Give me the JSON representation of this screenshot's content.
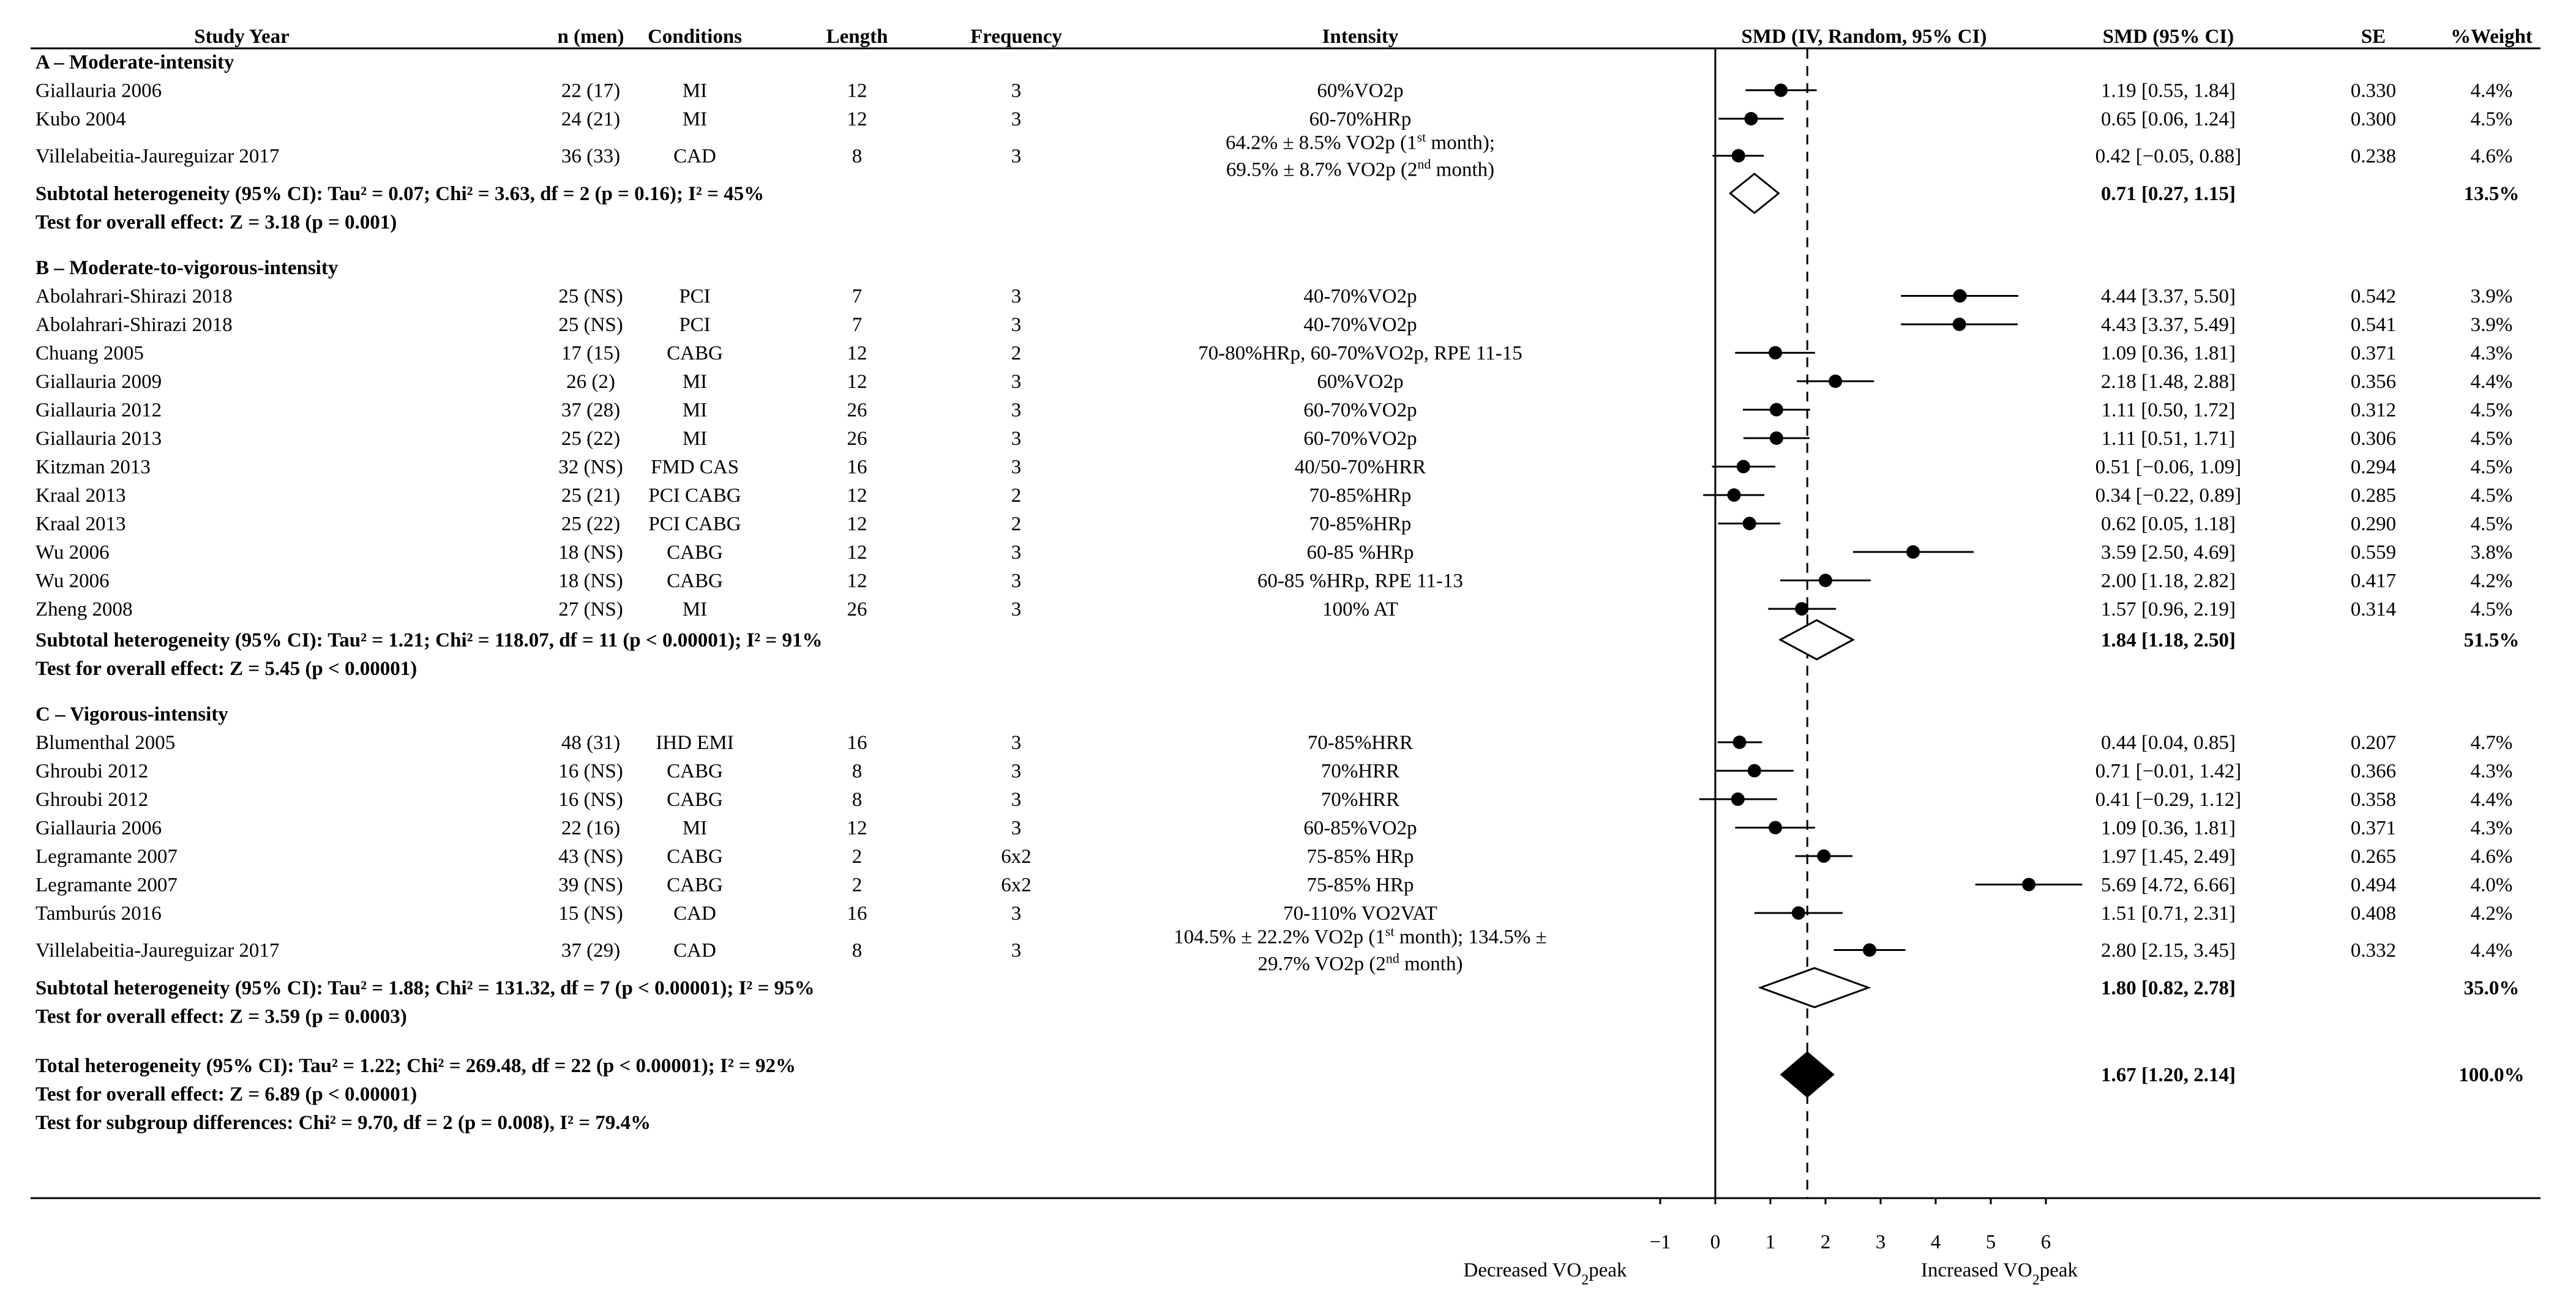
{
  "chart_data": {
    "type": "forest",
    "title": "",
    "columns": {
      "study": "Study Year",
      "n": "n (men)",
      "conditions": "Conditions",
      "length": "Length",
      "frequency": "Frequency",
      "intensity": "Intensity",
      "plot": "SMD (IV, Random, 95% CI)",
      "smd": "SMD (95% CI)",
      "se": "SE",
      "weight": "%Weight"
    },
    "xaxis": {
      "min": -1,
      "max": 6,
      "ticks": [
        -1,
        0,
        1,
        2,
        3,
        4,
        5,
        6
      ],
      "tick_labels": [
        "−1",
        "0",
        "1",
        "2",
        "3",
        "4",
        "5",
        "6"
      ],
      "dashed_line_at": 1.67,
      "left_label": "Decreased VO₂peak",
      "right_label": "Increased VO₂peak"
    },
    "groups": [
      {
        "heading": "A – Moderate-intensity",
        "studies": [
          {
            "name": "Giallauria 2006",
            "n": "22 (17)",
            "cond": "MI",
            "length": "12",
            "freq": "3",
            "intensity": [
              "60%VO2p"
            ],
            "smd": 1.19,
            "lo": 0.55,
            "hi": 1.84,
            "ci_text": "1.19 [0.55, 1.84]",
            "se": "0.330",
            "weight": "4.4%"
          },
          {
            "name": "Kubo 2004",
            "n": "24 (21)",
            "cond": "MI",
            "length": "12",
            "freq": "3",
            "intensity": [
              "60-70%HRp"
            ],
            "smd": 0.65,
            "lo": 0.06,
            "hi": 1.24,
            "ci_text": "0.65 [0.06, 1.24]",
            "se": "0.300",
            "weight": "4.5%"
          },
          {
            "name": "Villelabeitia-Jaureguizar 2017",
            "n": "36 (33)",
            "cond": "CAD",
            "length": "8",
            "freq": "3",
            "intensity": [
              "64.2% ± 8.5% VO2p (1st month);",
              "69.5% ± 8.7% VO2p (2nd month)"
            ],
            "smd": 0.42,
            "lo": -0.05,
            "hi": 0.88,
            "ci_text": "0.42 [−0.05, 0.88]",
            "se": "0.238",
            "weight": "4.6%"
          }
        ],
        "subtotal": {
          "label": "Subtotal heterogeneity (95% CI): Tau² = 0.07; Chi² = 3.63, df = 2 (p = 0.16); I² = 45%",
          "smd": 0.71,
          "lo": 0.27,
          "hi": 1.15,
          "ci_text": "0.71 [0.27, 1.15]",
          "weight": "13.5%"
        },
        "overall": "Test for overall effect: Z = 3.18 (p = 0.001)"
      },
      {
        "heading": "B – Moderate-to-vigorous-intensity",
        "studies": [
          {
            "name": "Abolahrari-Shirazi 2018",
            "n": "25 (NS)",
            "cond": "PCI",
            "length": "7",
            "freq": "3",
            "intensity": [
              "40-70%VO2p"
            ],
            "smd": 4.44,
            "lo": 3.37,
            "hi": 5.5,
            "ci_text": "4.44 [3.37, 5.50]",
            "se": "0.542",
            "weight": "3.9%"
          },
          {
            "name": "Abolahrari-Shirazi 2018",
            "n": "25 (NS)",
            "cond": "PCI",
            "length": "7",
            "freq": "3",
            "intensity": [
              "40-70%VO2p"
            ],
            "smd": 4.43,
            "lo": 3.37,
            "hi": 5.49,
            "ci_text": "4.43 [3.37, 5.49]",
            "se": "0.541",
            "weight": "3.9%"
          },
          {
            "name": "Chuang 2005",
            "n": "17 (15)",
            "cond": "CABG",
            "length": "12",
            "freq": "2",
            "intensity": [
              "70-80%HRp, 60-70%VO2p, RPE 11-15"
            ],
            "smd": 1.09,
            "lo": 0.36,
            "hi": 1.81,
            "ci_text": "1.09 [0.36, 1.81]",
            "se": "0.371",
            "weight": "4.3%"
          },
          {
            "name": "Giallauria 2009",
            "n": "26 (2)",
            "cond": "MI",
            "length": "12",
            "freq": "3",
            "intensity": [
              "60%VO2p"
            ],
            "smd": 2.18,
            "lo": 1.48,
            "hi": 2.88,
            "ci_text": "2.18 [1.48, 2.88]",
            "se": "0.356",
            "weight": "4.4%"
          },
          {
            "name": "Giallauria 2012",
            "n": "37 (28)",
            "cond": "MI",
            "length": "26",
            "freq": "3",
            "intensity": [
              "60-70%VO2p"
            ],
            "smd": 1.11,
            "lo": 0.5,
            "hi": 1.72,
            "ci_text": "1.11 [0.50, 1.72]",
            "se": "0.312",
            "weight": "4.5%"
          },
          {
            "name": "Giallauria 2013",
            "n": "25 (22)",
            "cond": "MI",
            "length": "26",
            "freq": "3",
            "intensity": [
              "60-70%VO2p"
            ],
            "smd": 1.11,
            "lo": 0.51,
            "hi": 1.71,
            "ci_text": "1.11 [0.51, 1.71]",
            "se": "0.306",
            "weight": "4.5%"
          },
          {
            "name": "Kitzman 2013",
            "n": "32 (NS)",
            "cond": "FMD CAS",
            "length": "16",
            "freq": "3",
            "intensity": [
              "40/50-70%HRR"
            ],
            "smd": 0.51,
            "lo": -0.06,
            "hi": 1.09,
            "ci_text": "0.51 [−0.06, 1.09]",
            "se": "0.294",
            "weight": "4.5%"
          },
          {
            "name": "Kraal 2013",
            "n": "25 (21)",
            "cond": "PCI CABG",
            "length": "12",
            "freq": "2",
            "intensity": [
              "70-85%HRp"
            ],
            "smd": 0.34,
            "lo": -0.22,
            "hi": 0.89,
            "ci_text": "0.34 [−0.22, 0.89]",
            "se": "0.285",
            "weight": "4.5%"
          },
          {
            "name": "Kraal 2013",
            "n": "25 (22)",
            "cond": "PCI CABG",
            "length": "12",
            "freq": "2",
            "intensity": [
              "70-85%HRp"
            ],
            "smd": 0.62,
            "lo": 0.05,
            "hi": 1.18,
            "ci_text": "0.62 [0.05, 1.18]",
            "se": "0.290",
            "weight": "4.5%"
          },
          {
            "name": "Wu 2006",
            "n": "18 (NS)",
            "cond": "CABG",
            "length": "12",
            "freq": "3",
            "intensity": [
              "60-85 %HRp"
            ],
            "smd": 3.59,
            "lo": 2.5,
            "hi": 4.69,
            "ci_text": "3.59 [2.50, 4.69]",
            "se": "0.559",
            "weight": "3.8%"
          },
          {
            "name": "Wu 2006",
            "n": "18 (NS)",
            "cond": "CABG",
            "length": "12",
            "freq": "3",
            "intensity": [
              "60-85 %HRp, RPE 11-13"
            ],
            "smd": 2.0,
            "lo": 1.18,
            "hi": 2.82,
            "ci_text": "2.00 [1.18, 2.82]",
            "se": "0.417",
            "weight": "4.2%"
          },
          {
            "name": "Zheng 2008",
            "n": "27 (NS)",
            "cond": "MI",
            "length": "26",
            "freq": "3",
            "intensity": [
              "100% AT"
            ],
            "smd": 1.57,
            "lo": 0.96,
            "hi": 2.19,
            "ci_text": "1.57 [0.96, 2.19]",
            "se": "0.314",
            "weight": "4.5%"
          }
        ],
        "subtotal": {
          "label": "Subtotal heterogeneity (95% CI): Tau² = 1.21; Chi² = 118.07, df = 11 (p < 0.00001); I² = 91%",
          "smd": 1.84,
          "lo": 1.18,
          "hi": 2.5,
          "ci_text": "1.84 [1.18, 2.50]",
          "weight": "51.5%"
        },
        "overall": "Test for overall effect: Z = 5.45 (p < 0.00001)"
      },
      {
        "heading": "C – Vigorous-intensity",
        "studies": [
          {
            "name": "Blumenthal 2005",
            "n": "48 (31)",
            "cond": "IHD EMI",
            "length": "16",
            "freq": "3",
            "intensity": [
              "70-85%HRR"
            ],
            "smd": 0.44,
            "lo": 0.04,
            "hi": 0.85,
            "ci_text": "0.44 [0.04, 0.85]",
            "se": "0.207",
            "weight": "4.7%"
          },
          {
            "name": "Ghroubi 2012",
            "n": "16 (NS)",
            "cond": "CABG",
            "length": "8",
            "freq": "3",
            "intensity": [
              "70%HRR"
            ],
            "smd": 0.71,
            "lo": -0.01,
            "hi": 1.42,
            "ci_text": "0.71 [−0.01, 1.42]",
            "se": "0.366",
            "weight": "4.3%"
          },
          {
            "name": "Ghroubi 2012",
            "n": "16 (NS)",
            "cond": "CABG",
            "length": "8",
            "freq": "3",
            "intensity": [
              "70%HRR"
            ],
            "smd": 0.41,
            "lo": -0.29,
            "hi": 1.12,
            "ci_text": "0.41 [−0.29, 1.12]",
            "se": "0.358",
            "weight": "4.4%"
          },
          {
            "name": "Giallauria 2006",
            "n": "22 (16)",
            "cond": "MI",
            "length": "12",
            "freq": "3",
            "intensity": [
              "60-85%VO2p"
            ],
            "smd": 1.09,
            "lo": 0.36,
            "hi": 1.81,
            "ci_text": "1.09 [0.36, 1.81]",
            "se": "0.371",
            "weight": "4.3%"
          },
          {
            "name": "Legramante 2007",
            "n": "43 (NS)",
            "cond": "CABG",
            "length": "2",
            "freq": "6x2",
            "intensity": [
              "75-85% HRp"
            ],
            "smd": 1.97,
            "lo": 1.45,
            "hi": 2.49,
            "ci_text": "1.97 [1.45, 2.49]",
            "se": "0.265",
            "weight": "4.6%"
          },
          {
            "name": "Legramante 2007",
            "n": "39 (NS)",
            "cond": "CABG",
            "length": "2",
            "freq": "6x2",
            "intensity": [
              "75-85% HRp"
            ],
            "smd": 5.69,
            "lo": 4.72,
            "hi": 6.66,
            "ci_text": "5.69 [4.72, 6.66]",
            "se": "0.494",
            "weight": "4.0%"
          },
          {
            "name": "Tamburús 2016",
            "n": "15 (NS)",
            "cond": "CAD",
            "length": "16",
            "freq": "3",
            "intensity": [
              "70-110% VO2VAT"
            ],
            "smd": 1.51,
            "lo": 0.71,
            "hi": 2.31,
            "ci_text": "1.51 [0.71, 2.31]",
            "se": "0.408",
            "weight": "4.2%"
          },
          {
            "name": "Villelabeitia-Jaureguizar 2017",
            "n": "37 (29)",
            "cond": "CAD",
            "length": "8",
            "freq": "3",
            "intensity": [
              "104.5% ± 22.2% VO2p (1st month); 134.5% ±",
              "29.7% VO2p (2nd month)"
            ],
            "smd": 2.8,
            "lo": 2.15,
            "hi": 3.45,
            "ci_text": "2.80 [2.15, 3.45]",
            "se": "0.332",
            "weight": "4.4%"
          }
        ],
        "subtotal": {
          "label": "Subtotal heterogeneity (95% CI): Tau² = 1.88; Chi² = 131.32, df = 7 (p < 0.00001); I² = 95%",
          "smd": 1.8,
          "lo": 0.82,
          "hi": 2.78,
          "ci_text": "1.80 [0.82, 2.78]",
          "weight": "35.0%"
        },
        "overall": "Test for overall effect: Z = 3.59 (p = 0.0003)"
      }
    ],
    "total": {
      "label": "Total heterogeneity (95% CI): Tau² = 1.22; Chi² = 269.48, df = 22 (p < 0.00001); I² = 92%",
      "smd": 1.67,
      "lo": 1.2,
      "hi": 2.14,
      "ci_text": "1.67 [1.20, 2.14]",
      "weight": "100.0%",
      "overall": "Test for overall effect: Z = 6.89 (p < 0.00001)",
      "subgroup": "Test for subgroup differences: Chi² = 9.70, df = 2 (p = 0.008), I² = 79.4%"
    }
  }
}
